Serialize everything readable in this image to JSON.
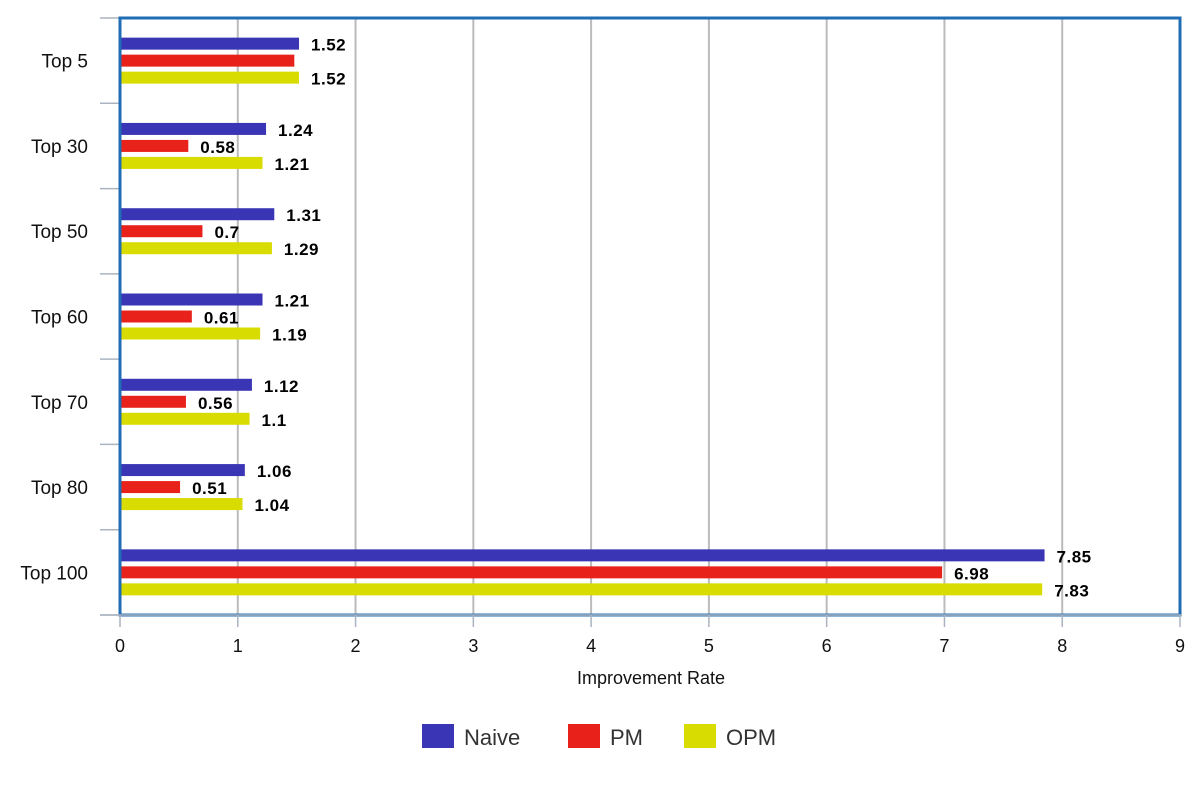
{
  "chart_data": {
    "type": "bar",
    "orientation": "horizontal",
    "categories": [
      "Top 5",
      "Top 30",
      "Top 50",
      "Top 60",
      "Top 70",
      "Top 80",
      "Top 100"
    ],
    "series": [
      {
        "name": "Naive",
        "color": "#3a35b5",
        "values": [
          1.52,
          1.24,
          1.31,
          1.21,
          1.12,
          1.06,
          7.85
        ]
      },
      {
        "name": "PM",
        "color": "#e8221b",
        "values": [
          1.48,
          0.58,
          0.7,
          0.61,
          0.56,
          0.51,
          6.98
        ]
      },
      {
        "name": "OPM",
        "color": "#d9dc00",
        "values": [
          1.52,
          1.21,
          1.29,
          1.19,
          1.1,
          1.04,
          7.83
        ]
      }
    ],
    "data_labels": [
      [
        "1.52",
        "1.24",
        "1.31",
        "1.21",
        "1.12",
        "1.06",
        "7.85"
      ],
      [
        "",
        "0.58",
        "0.7",
        "0.61",
        "0.56",
        "0.51",
        "6.98"
      ],
      [
        "1.52",
        "1.21",
        "1.29",
        "1.19",
        "1.1",
        "1.04",
        "7.83"
      ]
    ],
    "x_ticks": [
      "0",
      "1",
      "2",
      "3",
      "4",
      "5",
      "6",
      "7",
      "8",
      "9"
    ],
    "xlim": [
      0,
      9
    ],
    "xlabel": "Improvement Rate",
    "ylabel": "",
    "title": "",
    "grid": "vertical",
    "legend_position": "bottom",
    "frame_color": "#1f6db5",
    "grid_color": "#bbbbbb"
  }
}
